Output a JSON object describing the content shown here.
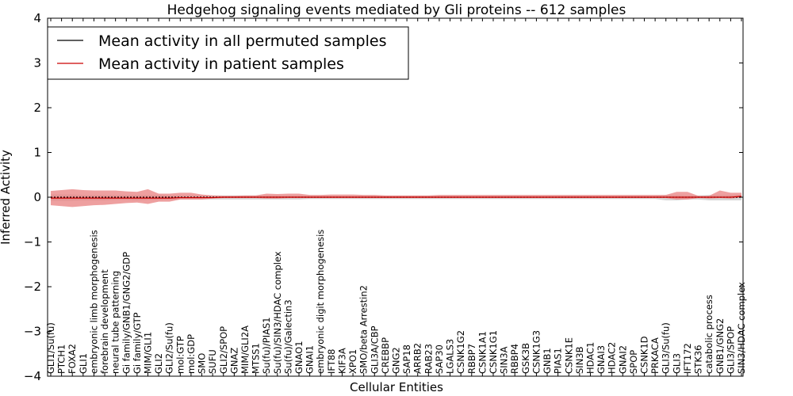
{
  "chart_data": {
    "type": "line",
    "title": "Hedgehog signaling events mediated by Gli proteins -- 612 samples",
    "xlabel": "Cellular Entities",
    "ylabel": "Inferred Activity",
    "ylim": [
      -4,
      4
    ],
    "yticks": [
      "−4",
      "−3",
      "−2",
      "−1",
      "0",
      "1",
      "2",
      "3",
      "4"
    ],
    "legend_position": "top-left",
    "colors": {
      "permuted": "#000000",
      "patient": "#cc0000",
      "patient_band": "#e88080",
      "permuted_band": "#c8c8c8"
    },
    "categories": [
      "GLI1/Su(fu)",
      "PTCH1",
      "FOXA2",
      "GLI1",
      "embryonic limb morphogenesis",
      "forebrain development",
      "neural tube patterning",
      "Gi family/GNB1/GNG2/GDP",
      "Gi family/GTP",
      "MIM/GLI1",
      "GLI2",
      "GLI2/Su(fu)",
      "mol:GTP",
      "mol:GDP",
      "SMO",
      "SUFU",
      "GLI2/SPOP",
      "GNAZ",
      "MIM/GLI2A",
      "MTSS1",
      "Su(fu)/PIAS1",
      "Su(fu)/SIN3/HDAC complex",
      "Su(fu)/Galectin3",
      "GNAO1",
      "GNAI1",
      "embryonic digit morphogenesis",
      "IFT88",
      "KIF3A",
      "XPO1",
      "SMO/beta Arrestin2",
      "GLI3A/CBP",
      "CREBBP",
      "GNG2",
      "SAP18",
      "ARRB2",
      "RAB23",
      "SAP30",
      "LGALS3",
      "CSNK1G2",
      "RBBP7",
      "CSNK1A1",
      "CSNK1G1",
      "SIN3A",
      "RBBP4",
      "GSK3B",
      "CSNK1G3",
      "GNB1",
      "PIAS1",
      "CSNK1E",
      "SIN3B",
      "HDAC1",
      "GNAI3",
      "HDAC2",
      "GNAI2",
      "SPOP",
      "CSNK1D",
      "PRKACA",
      "GLI3/Su(fu)",
      "GLI3",
      "IFT172",
      "STK36",
      "catabolic process",
      "GNB1/GNG2",
      "GLI3/SPOP",
      "SIN3/HDAC complex"
    ],
    "series": [
      {
        "name": "Mean activity in all permuted samples",
        "values": [
          0,
          0,
          0,
          0,
          0,
          0,
          0,
          0,
          0,
          0,
          0,
          0,
          0,
          0,
          0,
          0,
          0,
          0,
          0,
          0,
          0,
          0,
          0,
          0,
          0,
          0,
          0,
          0,
          0,
          0,
          0,
          0,
          0,
          0,
          0,
          0,
          0,
          0,
          0,
          0,
          0,
          0,
          0,
          0,
          0,
          0,
          0,
          0,
          0,
          0,
          0,
          0,
          0,
          0,
          0,
          0,
          0,
          0,
          0,
          0,
          0,
          0,
          0,
          0,
          0
        ],
        "lower": [
          -0.08,
          -0.08,
          -0.08,
          -0.07,
          -0.07,
          -0.07,
          -0.06,
          -0.06,
          -0.07,
          -0.06,
          -0.06,
          -0.05,
          -0.05,
          -0.05,
          -0.05,
          -0.05,
          -0.05,
          -0.05,
          -0.05,
          -0.05,
          -0.05,
          -0.05,
          -0.05,
          -0.05,
          -0.04,
          -0.04,
          -0.04,
          -0.04,
          -0.04,
          -0.04,
          -0.04,
          -0.04,
          -0.04,
          -0.04,
          -0.04,
          -0.04,
          -0.04,
          -0.04,
          -0.04,
          -0.04,
          -0.04,
          -0.04,
          -0.04,
          -0.04,
          -0.04,
          -0.04,
          -0.04,
          -0.04,
          -0.04,
          -0.04,
          -0.04,
          -0.04,
          -0.04,
          -0.04,
          -0.04,
          -0.04,
          -0.04,
          -0.07,
          -0.07,
          -0.05,
          -0.05,
          -0.07,
          -0.07,
          -0.07,
          -0.07
        ],
        "upper": [
          0.06,
          0.06,
          0.06,
          0.05,
          0.05,
          0.05,
          0.05,
          0.05,
          0.05,
          0.05,
          0.05,
          0.04,
          0.04,
          0.04,
          0.04,
          0.04,
          0.04,
          0.04,
          0.04,
          0.04,
          0.04,
          0.04,
          0.04,
          0.04,
          0.03,
          0.03,
          0.03,
          0.03,
          0.03,
          0.03,
          0.03,
          0.03,
          0.03,
          0.03,
          0.03,
          0.03,
          0.03,
          0.03,
          0.03,
          0.03,
          0.03,
          0.03,
          0.03,
          0.03,
          0.03,
          0.03,
          0.03,
          0.03,
          0.03,
          0.03,
          0.03,
          0.03,
          0.03,
          0.03,
          0.03,
          0.03,
          0.03,
          0.05,
          0.05,
          0.04,
          0.04,
          0.05,
          0.05,
          0.05,
          0.05
        ]
      },
      {
        "name": "Mean activity in patient samples",
        "values": [
          -0.02,
          -0.02,
          -0.02,
          -0.02,
          -0.02,
          -0.02,
          -0.02,
          -0.02,
          -0.02,
          -0.02,
          -0.02,
          -0.02,
          -0.01,
          -0.01,
          -0.01,
          -0.01,
          0,
          0,
          0,
          0,
          0,
          0,
          0,
          0,
          0,
          0,
          0,
          0,
          0,
          0,
          0,
          0,
          0,
          0,
          0,
          0,
          0,
          0,
          0,
          0,
          0,
          0,
          0,
          0,
          0,
          0,
          0,
          0,
          0,
          0,
          0,
          0,
          0,
          0,
          0,
          0,
          0,
          0,
          0,
          0,
          0,
          0,
          0,
          0,
          0.02
        ],
        "lower": [
          -0.18,
          -0.2,
          -0.22,
          -0.2,
          -0.18,
          -0.17,
          -0.15,
          -0.13,
          -0.12,
          -0.15,
          -0.1,
          -0.1,
          -0.05,
          -0.05,
          -0.05,
          -0.03,
          -0.02,
          -0.02,
          -0.02,
          -0.02,
          -0.03,
          -0.03,
          -0.02,
          -0.02,
          -0.02,
          -0.02,
          -0.02,
          -0.02,
          -0.02,
          -0.02,
          -0.02,
          -0.02,
          -0.02,
          -0.02,
          -0.02,
          -0.02,
          -0.02,
          -0.02,
          -0.02,
          -0.02,
          -0.02,
          -0.02,
          -0.02,
          -0.02,
          -0.02,
          -0.02,
          -0.02,
          -0.02,
          -0.02,
          -0.02,
          -0.02,
          -0.02,
          -0.02,
          -0.02,
          -0.02,
          -0.02,
          -0.02,
          -0.02,
          -0.05,
          -0.05,
          -0.02,
          -0.03,
          -0.02,
          -0.03,
          -0.01
        ],
        "upper": [
          0.14,
          0.16,
          0.18,
          0.16,
          0.15,
          0.15,
          0.15,
          0.13,
          0.12,
          0.18,
          0.08,
          0.08,
          0.1,
          0.1,
          0.06,
          0.04,
          0.03,
          0.03,
          0.04,
          0.04,
          0.08,
          0.07,
          0.08,
          0.08,
          0.05,
          0.05,
          0.06,
          0.06,
          0.06,
          0.05,
          0.05,
          0.04,
          0.04,
          0.04,
          0.04,
          0.04,
          0.05,
          0.05,
          0.05,
          0.05,
          0.05,
          0.05,
          0.05,
          0.05,
          0.05,
          0.05,
          0.05,
          0.05,
          0.05,
          0.05,
          0.05,
          0.05,
          0.05,
          0.05,
          0.05,
          0.05,
          0.05,
          0.05,
          0.12,
          0.12,
          0.03,
          0.03,
          0.15,
          0.1,
          0.1
        ]
      }
    ]
  }
}
